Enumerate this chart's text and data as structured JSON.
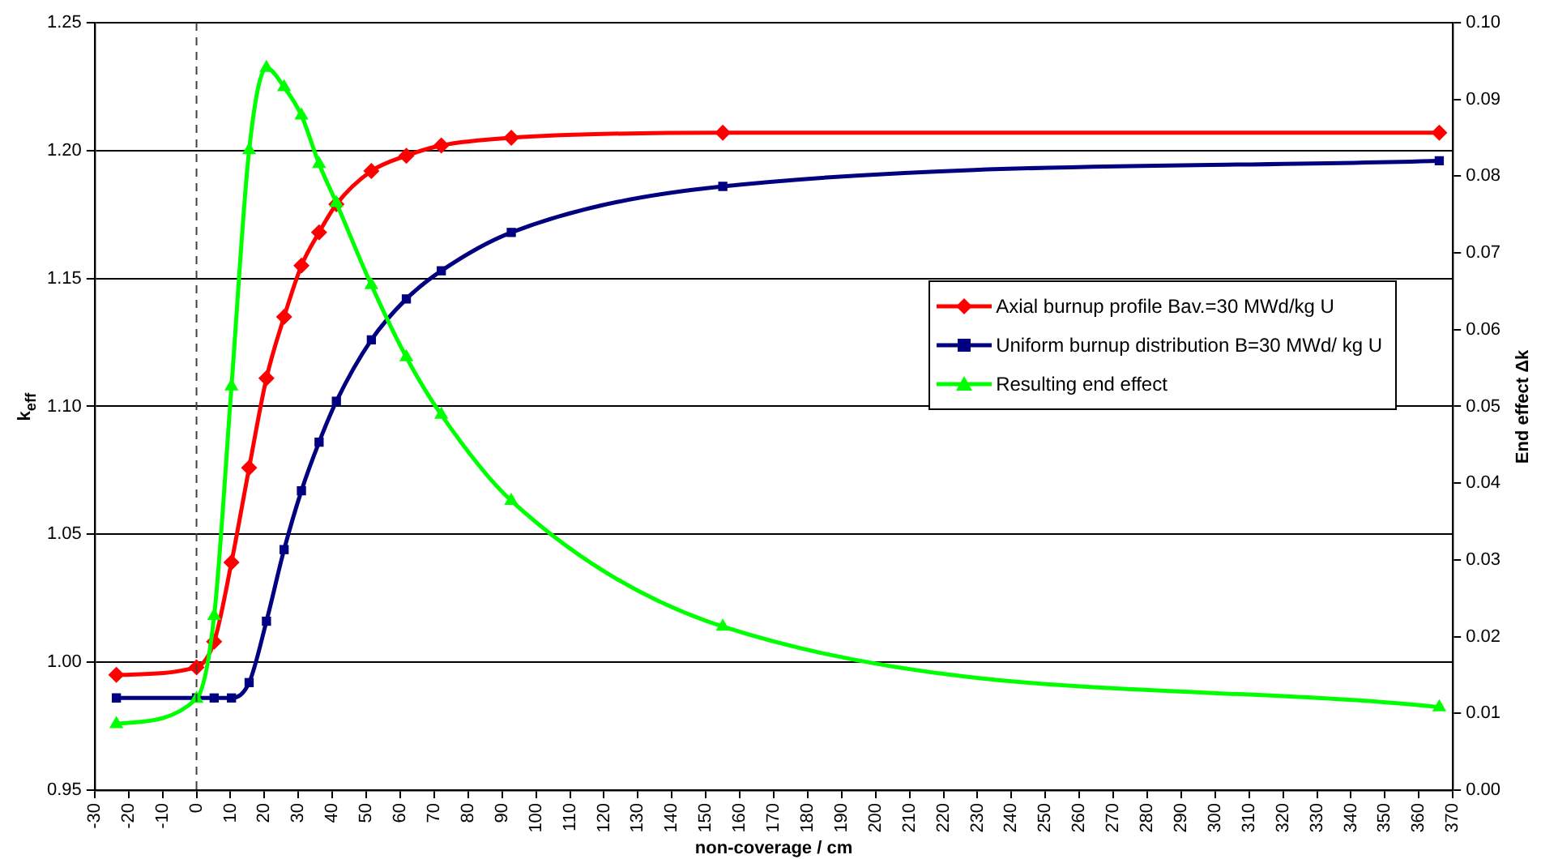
{
  "chart_data": {
    "type": "line",
    "xlabel": "non-coverage / cm",
    "ylabel": "k$_{eff}$",
    "y2label": "End effect Δk",
    "x": [
      -23.6,
      0,
      5.2,
      10.3,
      15.5,
      20.6,
      25.8,
      30.9,
      36.1,
      41.2,
      51.5,
      61.8,
      72.1,
      92.7,
      155,
      366
    ],
    "series": [
      {
        "name": "Axial burnup profile Bav.=30 MWd/kg U",
        "color": "#ff0000",
        "marker": "diamond",
        "values": [
          0.995,
          0.998,
          1.008,
          1.039,
          1.076,
          1.111,
          1.135,
          1.155,
          1.168,
          1.179,
          1.192,
          1.198,
          1.202,
          1.205,
          1.207,
          1.207
        ]
      },
      {
        "name": "Uniform burnup distribution B=30 MWd/ kg U",
        "color": "#000080",
        "marker": "square",
        "values": [
          0.986,
          0.986,
          0.986,
          0.986,
          0.992,
          1.016,
          1.044,
          1.067,
          1.086,
          1.102,
          1.126,
          1.142,
          1.153,
          1.168,
          1.186,
          1.196
        ]
      },
      {
        "name": "Resulting end effect",
        "color": "#00ff00",
        "marker": "triangle",
        "axis": "y2",
        "values": [
          0.0086,
          0.0119,
          0.0227,
          0.0526,
          0.0834,
          0.0941,
          0.0916,
          0.0879,
          0.0816,
          0.0765,
          0.0658,
          0.0564,
          0.0489,
          0.0377,
          0.0213,
          0.0108
        ]
      }
    ],
    "xlim": [
      -30,
      370
    ],
    "xticks": [
      -30,
      -20,
      -10,
      0,
      10,
      20,
      30,
      40,
      50,
      60,
      70,
      80,
      90,
      100,
      110,
      120,
      130,
      140,
      150,
      160,
      170,
      180,
      190,
      200,
      210,
      220,
      230,
      240,
      250,
      260,
      270,
      280,
      290,
      300,
      310,
      320,
      330,
      340,
      350,
      360,
      370
    ],
    "ylim": [
      0.95,
      1.25
    ],
    "yticks": [
      0.95,
      {
        "value": 1,
        "label": "1.00"
      },
      1.05,
      {
        "value": 1.1,
        "label": "1.10"
      },
      1.15,
      {
        "value": 1.2,
        "label": "1.20"
      },
      1.25
    ],
    "y2lim": [
      0,
      0.1
    ],
    "y2ticks": [
      {
        "value": 0,
        "label": "0.00"
      },
      0.01,
      0.02,
      0.03,
      0.04,
      0.05,
      0.06,
      0.07,
      0.08,
      0.09,
      {
        "value": 0.1,
        "label": "0.10"
      }
    ],
    "ref_lines": [
      {
        "axis": "x",
        "value": 0,
        "color": "#404040",
        "line_style": "dashed"
      }
    ],
    "grid": "y",
    "legend": "right",
    "line_style": "solid"
  }
}
